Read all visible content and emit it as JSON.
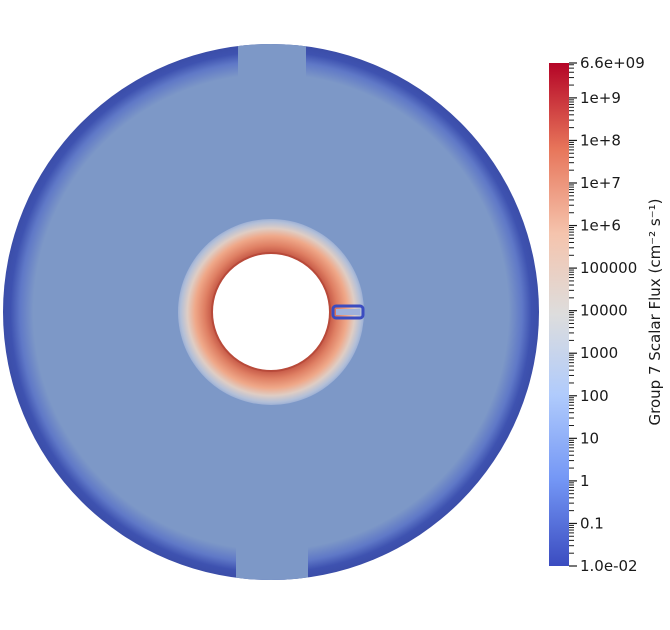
{
  "chart_data": {
    "type": "heatmap",
    "title": "",
    "colorbar": {
      "title": "Group 7 Scalar Flux (cm⁻² s⁻¹)",
      "scale": "log",
      "range": [
        0.01,
        6600000000
      ],
      "colormap": "coolwarm",
      "colors": [
        "#3b4cc0",
        "#7396f5",
        "#b0cbfc",
        "#dddddd",
        "#f5c4ad",
        "#e7755a",
        "#b40426"
      ],
      "ticks": [
        {
          "value": 6600000000,
          "label": "6.6e+09"
        },
        {
          "value": 1000000000,
          "label": "1e+9"
        },
        {
          "value": 100000000,
          "label": "1e+8"
        },
        {
          "value": 10000000,
          "label": "1e+7"
        },
        {
          "value": 1000000,
          "label": "1e+6"
        },
        {
          "value": 100000,
          "label": "100000"
        },
        {
          "value": 10000,
          "label": "10000"
        },
        {
          "value": 1000,
          "label": "1000"
        },
        {
          "value": 100,
          "label": "100"
        },
        {
          "value": 10,
          "label": "10"
        },
        {
          "value": 1,
          "label": "1"
        },
        {
          "value": 0.1,
          "label": "0.1"
        },
        {
          "value": 0.01,
          "label": "1.0e-02"
        }
      ]
    },
    "regions": [
      {
        "name": "central-void",
        "flux": null
      },
      {
        "name": "inner-ring",
        "flux_range": [
          1000,
          100000000
        ]
      },
      {
        "name": "main-body",
        "flux": 500
      },
      {
        "name": "outer-rim",
        "flux_range": [
          0.01,
          500
        ]
      },
      {
        "name": "top-notch",
        "flux": 500
      },
      {
        "name": "bottom-notch",
        "flux": 500
      },
      {
        "name": "small-channel",
        "flux": 0.01
      }
    ]
  }
}
